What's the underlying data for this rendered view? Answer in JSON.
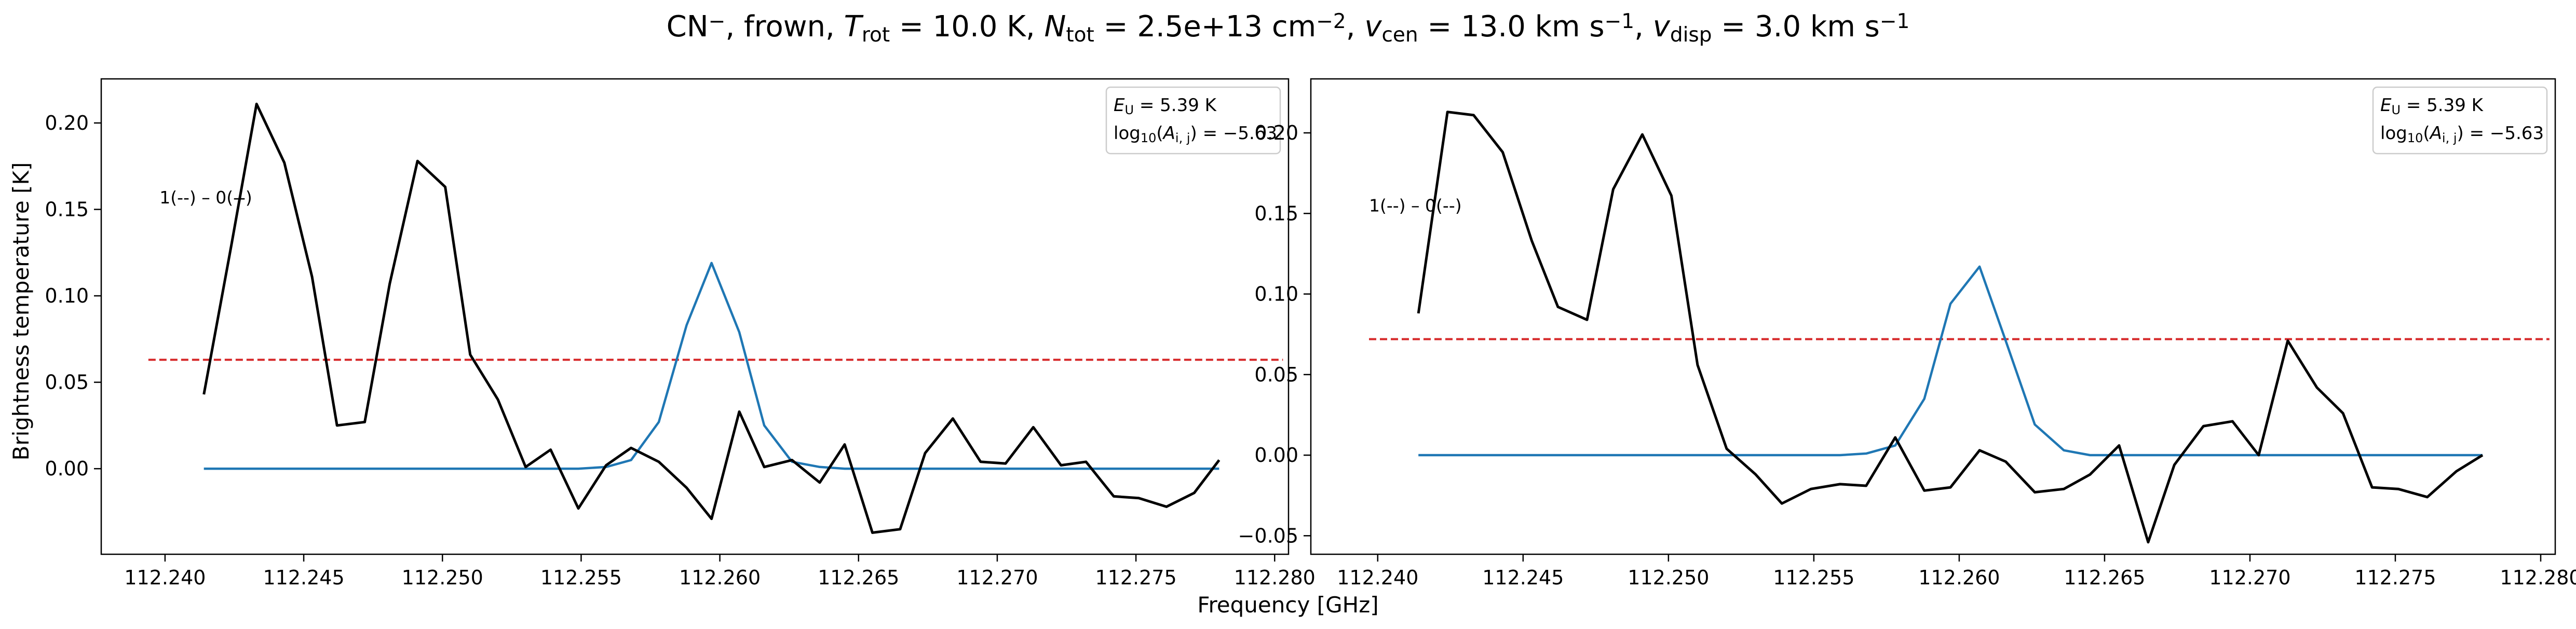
{
  "figure": {
    "title": "CN$^-$, frown, $T_{rot}=$ 10.0 K, $N_{tot}=$ 2.5e+13 cm$^{-2}$, $v_{cen}=$ 13.0 km s$^{-1}$, $v_{disp}=$ 3.0 km s$^{-1}$",
    "title_parts": [
      {
        "t": "CN",
        "s": "n"
      },
      {
        "t": "−",
        "s": "sup"
      },
      {
        "t": ", frown, ",
        "s": "n"
      },
      {
        "t": "T",
        "s": "i"
      },
      {
        "t": "rot",
        "s": "sub"
      },
      {
        "t": " = 10.0 K, ",
        "s": "n"
      },
      {
        "t": "N",
        "s": "i"
      },
      {
        "t": "tot",
        "s": "sub"
      },
      {
        "t": " = 2.5e+13 cm",
        "s": "n"
      },
      {
        "t": "−2",
        "s": "sup"
      },
      {
        "t": ", ",
        "s": "n"
      },
      {
        "t": "v",
        "s": "i"
      },
      {
        "t": "cen",
        "s": "sub"
      },
      {
        "t": " = 13.0 km s",
        "s": "n"
      },
      {
        "t": "−1",
        "s": "sup"
      },
      {
        "t": ", ",
        "s": "n"
      },
      {
        "t": "v",
        "s": "i"
      },
      {
        "t": "disp",
        "s": "sub"
      },
      {
        "t": " = 3.0 km s",
        "s": "n"
      },
      {
        "t": "−1",
        "s": "sup"
      }
    ],
    "xlabel": "Frequency [GHz]",
    "ylabel": "Brightness temperature [K]"
  },
  "chart_data": [
    {
      "type": "line",
      "xlim": [
        112.2377,
        112.2805
      ],
      "ylim": [
        -0.0495,
        0.2255
      ],
      "xticks": [
        112.24,
        112.245,
        112.25,
        112.255,
        112.26,
        112.265,
        112.27,
        112.275,
        112.28
      ],
      "xtick_labels": [
        "112.240",
        "112.245",
        "112.250",
        "112.255",
        "112.260",
        "112.265",
        "112.270",
        "112.275",
        "112.280"
      ],
      "yticks": [
        0.0,
        0.05,
        0.1,
        0.15,
        0.2
      ],
      "ytick_labels": [
        "0.00",
        "0.05",
        "0.10",
        "0.15",
        "0.20"
      ],
      "annotation": "1(--) – 0(--)",
      "annotation_pos": [
        112.2398,
        0.157
      ],
      "legend_lines": [
        "E_U = 5.39 K",
        "log10(A_i,j) = −5.63"
      ],
      "legend_parts": [
        [
          {
            "t": "E",
            "s": "i"
          },
          {
            "t": "U",
            "s": "sub"
          },
          {
            "t": " = 5.39 K",
            "s": "n"
          }
        ],
        [
          {
            "t": "log",
            "s": "n"
          },
          {
            "t": "10",
            "s": "sub"
          },
          {
            "t": "(",
            "s": "n"
          },
          {
            "t": "A",
            "s": "i"
          },
          {
            "t": "i, j",
            "s": "sub"
          },
          {
            "t": ") = −5.63",
            "s": "n"
          }
        ]
      ],
      "legend_position": "upper right",
      "threshold": {
        "y": 0.063,
        "x": [
          112.2394,
          112.2803
        ],
        "color": "#d62728",
        "style": "dashed"
      },
      "series": [
        {
          "color": "#000000",
          "x": [
            112.2414,
            112.2424,
            112.2433,
            112.2443,
            112.2453,
            112.2462,
            112.2472,
            112.2481,
            112.2491,
            112.2501,
            112.251,
            112.252,
            112.253,
            112.2539,
            112.2549,
            112.2559,
            112.2568,
            112.2578,
            112.2588,
            112.2597,
            112.2607,
            112.2616,
            112.2626,
            112.2636,
            112.2645,
            112.2655,
            112.2665,
            112.2674,
            112.2684,
            112.2694,
            112.2703,
            112.2713,
            112.2723,
            112.2732,
            112.2742,
            112.2751,
            112.2761,
            112.2771,
            112.278
          ],
          "y": [
            0.043,
            0.13,
            0.211,
            0.177,
            0.111,
            0.025,
            0.027,
            0.107,
            0.178,
            0.163,
            0.066,
            0.04,
            0.001,
            0.011,
            -0.023,
            0.002,
            0.012,
            0.004,
            -0.011,
            -0.029,
            0.033,
            0.001,
            0.005,
            -0.008,
            0.014,
            -0.037,
            -0.035,
            0.009,
            0.029,
            0.004,
            0.003,
            0.024,
            0.002,
            0.004,
            -0.016,
            -0.017,
            -0.022,
            -0.014,
            0.005
          ]
        },
        {
          "color": "#1f77b4",
          "x": [
            112.2414,
            112.2424,
            112.2433,
            112.2443,
            112.2453,
            112.2462,
            112.2472,
            112.2481,
            112.2491,
            112.2501,
            112.251,
            112.252,
            112.253,
            112.2539,
            112.2549,
            112.2559,
            112.2568,
            112.2578,
            112.2588,
            112.2597,
            112.2607,
            112.2616,
            112.2626,
            112.2636,
            112.2645,
            112.2655,
            112.2665,
            112.2674,
            112.2684,
            112.2694,
            112.2703,
            112.2713,
            112.2723,
            112.2732,
            112.2742,
            112.2751,
            112.2761,
            112.2771,
            112.278
          ],
          "y": [
            0,
            0,
            0,
            0,
            0,
            0,
            0,
            0,
            0,
            0,
            0,
            0,
            0,
            0,
            0,
            0.001,
            0.005,
            0.027,
            0.083,
            0.119,
            0.079,
            0.025,
            0.004,
            0.001,
            0,
            0,
            0,
            0,
            0,
            0,
            0,
            0,
            0,
            0,
            0,
            0,
            0,
            0,
            0
          ]
        }
      ]
    },
    {
      "type": "line",
      "xlim": [
        112.2377,
        112.2805
      ],
      "ylim": [
        -0.0615,
        0.2335
      ],
      "xticks": [
        112.24,
        112.245,
        112.25,
        112.255,
        112.26,
        112.265,
        112.27,
        112.275,
        112.28
      ],
      "xtick_labels": [
        "112.240",
        "112.245",
        "112.250",
        "112.255",
        "112.260",
        "112.265",
        "112.270",
        "112.275",
        "112.280"
      ],
      "yticks": [
        -0.05,
        0.0,
        0.05,
        0.1,
        0.15,
        0.2
      ],
      "ytick_labels": [
        "−0.05",
        "0.00",
        "0.05",
        "0.10",
        "0.15",
        "0.20"
      ],
      "annotation": "1(--) – 0(--)",
      "annotation_pos": [
        112.2397,
        0.155
      ],
      "legend_lines": [
        "E_U = 5.39 K",
        "log10(A_i,j) = −5.63"
      ],
      "legend_parts": [
        [
          {
            "t": "E",
            "s": "i"
          },
          {
            "t": "U",
            "s": "sub"
          },
          {
            "t": " = 5.39 K",
            "s": "n"
          }
        ],
        [
          {
            "t": "log",
            "s": "n"
          },
          {
            "t": "10",
            "s": "sub"
          },
          {
            "t": "(",
            "s": "n"
          },
          {
            "t": "A",
            "s": "i"
          },
          {
            "t": "i, j",
            "s": "sub"
          },
          {
            "t": ") = −5.63",
            "s": "n"
          }
        ]
      ],
      "legend_position": "upper right",
      "threshold": {
        "y": 0.072,
        "x": [
          112.2397,
          112.2803
        ],
        "color": "#d62728",
        "style": "dashed"
      },
      "series": [
        {
          "color": "#000000",
          "x": [
            112.2414,
            112.2424,
            112.2433,
            112.2443,
            112.2453,
            112.2462,
            112.2472,
            112.2481,
            112.2491,
            112.2501,
            112.251,
            112.252,
            112.253,
            112.2539,
            112.2549,
            112.2559,
            112.2568,
            112.2578,
            112.2588,
            112.2597,
            112.2607,
            112.2616,
            112.2626,
            112.2636,
            112.2645,
            112.2655,
            112.2665,
            112.2674,
            112.2684,
            112.2694,
            112.2703,
            112.2713,
            112.2723,
            112.2732,
            112.2742,
            112.2751,
            112.2761,
            112.2771,
            112.278
          ],
          "y": [
            0.088,
            0.213,
            0.211,
            0.188,
            0.133,
            0.092,
            0.084,
            0.165,
            0.199,
            0.161,
            0.056,
            0.004,
            -0.012,
            -0.03,
            -0.021,
            -0.018,
            -0.019,
            0.011,
            -0.022,
            -0.02,
            0.003,
            -0.004,
            -0.023,
            -0.021,
            -0.012,
            0.006,
            -0.054,
            -0.006,
            0.018,
            0.021,
            0.0,
            0.071,
            0.042,
            0.026,
            -0.02,
            -0.021,
            -0.026,
            -0.01,
            0.0
          ]
        },
        {
          "color": "#1f77b4",
          "x": [
            112.2414,
            112.2424,
            112.2433,
            112.2443,
            112.2453,
            112.2462,
            112.2472,
            112.2481,
            112.2491,
            112.2501,
            112.251,
            112.252,
            112.253,
            112.2539,
            112.2549,
            112.2559,
            112.2568,
            112.2578,
            112.2588,
            112.2597,
            112.2607,
            112.2616,
            112.2626,
            112.2636,
            112.2645,
            112.2655,
            112.2665,
            112.2674,
            112.2684,
            112.2694,
            112.2703,
            112.2713,
            112.2723,
            112.2732,
            112.2742,
            112.2751,
            112.2761,
            112.2771,
            112.278
          ],
          "y": [
            0,
            0,
            0,
            0,
            0,
            0,
            0,
            0,
            0,
            0,
            0,
            0,
            0,
            0,
            0,
            0,
            0.001,
            0.006,
            0.035,
            0.094,
            0.117,
            0.071,
            0.019,
            0.003,
            0,
            0,
            0,
            0,
            0,
            0,
            0,
            0,
            0,
            0,
            0,
            0,
            0,
            0,
            0
          ]
        }
      ]
    }
  ]
}
